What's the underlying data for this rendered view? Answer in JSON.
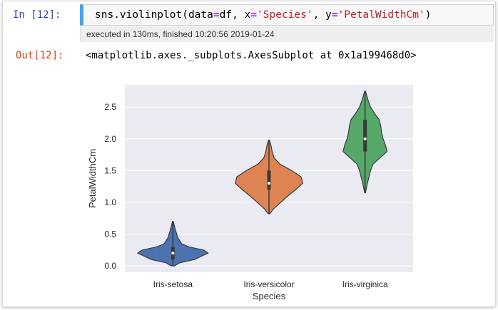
{
  "cell": {
    "in_prompt": "In [12]:",
    "code": {
      "prefix": "sns.violinplot(data",
      "eq1": "=",
      "arg1": "df, x",
      "eq2": "=",
      "str1": "'Species'",
      "arg2": ", y",
      "eq3": "=",
      "str2": "'PetalWidthCm'",
      "suffix": ")"
    },
    "exec_info": "executed in 130ms, finished 10:20:56 2019-01-24",
    "out_prompt": "Out[12]:",
    "output_text": "<matplotlib.axes._subplots.AxesSubplot at 0x1a199468d0>"
  },
  "colors": {
    "in_prompt": "#303f9f",
    "out_prompt": "#d84315",
    "cell_accent": "#42a5f5",
    "axes_bg": "#eaeaf2"
  },
  "chart_data": {
    "type": "violin",
    "xlabel": "Species",
    "ylabel": "PetalWidthCm",
    "ylim": [
      -0.1,
      2.85
    ],
    "yticks": [
      "0.0",
      "0.5",
      "1.0",
      "1.5",
      "2.0",
      "2.5"
    ],
    "grid": true,
    "categories": [
      "Iris-setosa",
      "Iris-versicolor",
      "Iris-virginica"
    ],
    "violins": [
      {
        "category": "Iris-setosa",
        "color": "#4c72b0",
        "min": 0.0,
        "max": 0.7,
        "q1": 0.1,
        "median": 0.2,
        "q3": 0.3,
        "profile": [
          [
            0.0,
            0.04
          ],
          [
            0.05,
            0.18
          ],
          [
            0.1,
            0.55
          ],
          [
            0.15,
            0.72
          ],
          [
            0.2,
            0.9
          ],
          [
            0.25,
            0.78
          ],
          [
            0.3,
            0.4
          ],
          [
            0.35,
            0.22
          ],
          [
            0.4,
            0.17
          ],
          [
            0.45,
            0.12
          ],
          [
            0.5,
            0.1
          ],
          [
            0.55,
            0.07
          ],
          [
            0.6,
            0.05
          ],
          [
            0.65,
            0.03
          ],
          [
            0.7,
            0.01
          ]
        ]
      },
      {
        "category": "Iris-versicolor",
        "color": "#dd8452",
        "min": 0.82,
        "max": 1.98,
        "q1": 1.2,
        "median": 1.3,
        "q3": 1.5,
        "profile": [
          [
            0.82,
            0.02
          ],
          [
            0.9,
            0.12
          ],
          [
            1.0,
            0.3
          ],
          [
            1.1,
            0.48
          ],
          [
            1.2,
            0.68
          ],
          [
            1.3,
            0.86
          ],
          [
            1.4,
            0.82
          ],
          [
            1.5,
            0.58
          ],
          [
            1.6,
            0.28
          ],
          [
            1.7,
            0.13
          ],
          [
            1.8,
            0.08
          ],
          [
            1.9,
            0.05
          ],
          [
            1.98,
            0.01
          ]
        ]
      },
      {
        "category": "Iris-virginica",
        "color": "#55a868",
        "min": 1.15,
        "max": 2.75,
        "q1": 1.8,
        "median": 2.0,
        "q3": 2.3,
        "profile": [
          [
            1.15,
            0.01
          ],
          [
            1.3,
            0.06
          ],
          [
            1.5,
            0.14
          ],
          [
            1.6,
            0.2
          ],
          [
            1.7,
            0.38
          ],
          [
            1.8,
            0.56
          ],
          [
            1.9,
            0.52
          ],
          [
            2.0,
            0.46
          ],
          [
            2.1,
            0.42
          ],
          [
            2.2,
            0.4
          ],
          [
            2.3,
            0.36
          ],
          [
            2.4,
            0.24
          ],
          [
            2.5,
            0.14
          ],
          [
            2.6,
            0.08
          ],
          [
            2.75,
            0.01
          ]
        ]
      }
    ]
  }
}
